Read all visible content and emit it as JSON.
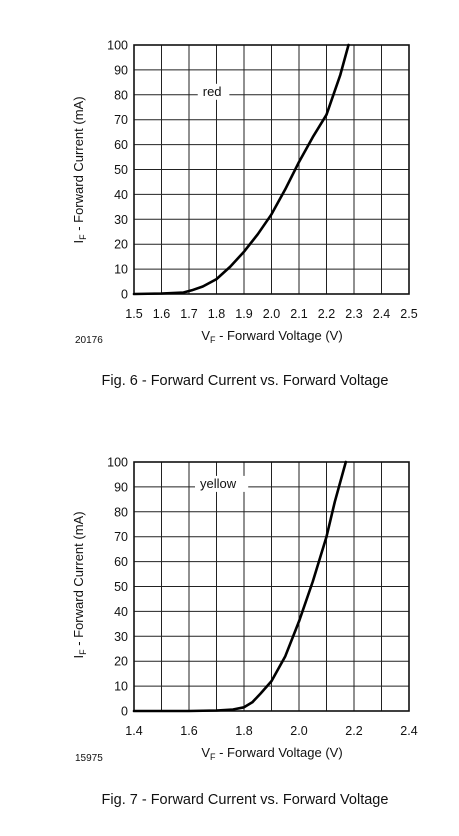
{
  "chart_data": [
    {
      "type": "line",
      "figure_id": "20176",
      "caption": "Fig. 6 - Forward Current vs. Forward Voltage",
      "xlabel_main": "V",
      "xlabel_sub": "F",
      "xlabel_rest": " - Forward Voltage (V)",
      "ylabel_main": "I",
      "ylabel_sub": "F",
      "ylabel_rest": " - Forward Current (mA)",
      "xlim": [
        1.5,
        2.5
      ],
      "ylim": [
        0,
        100
      ],
      "x_ticks": [
        1.5,
        1.6,
        1.7,
        1.8,
        1.9,
        2.0,
        2.1,
        2.2,
        2.3,
        2.4,
        2.5
      ],
      "x_tick_labels": [
        "1.5",
        "1.6",
        "1.7",
        "1.8",
        "1.9",
        "2.0",
        "2.1",
        "2.2",
        "2.3",
        "2.4",
        "2.5"
      ],
      "x_grid": [
        1.5,
        1.6,
        1.7,
        1.8,
        1.9,
        2.0,
        2.1,
        2.2,
        2.3,
        2.4,
        2.5
      ],
      "y_ticks": [
        0,
        10,
        20,
        30,
        40,
        50,
        60,
        70,
        80,
        90,
        100
      ],
      "y_tick_labels": [
        "0",
        "10",
        "20",
        "30",
        "40",
        "50",
        "60",
        "70",
        "80",
        "90",
        "100"
      ],
      "grid": true,
      "series": [
        {
          "name": "red",
          "label_at": [
            1.75,
            80
          ],
          "x": [
            1.5,
            1.6,
            1.68,
            1.71,
            1.75,
            1.8,
            1.85,
            1.9,
            1.95,
            2.0,
            2.05,
            2.1,
            2.15,
            2.2,
            2.25,
            2.28
          ],
          "y": [
            0,
            0.2,
            0.6,
            1.5,
            3,
            6,
            11,
            17,
            24,
            32,
            42,
            53,
            63,
            72,
            88,
            100
          ]
        }
      ]
    },
    {
      "type": "line",
      "figure_id": "15975",
      "caption": "Fig. 7 - Forward Current vs. Forward Voltage",
      "xlabel_main": "V",
      "xlabel_sub": "F",
      "xlabel_rest": " - Forward Voltage (V)",
      "ylabel_main": "I",
      "ylabel_sub": "F",
      "ylabel_rest": " - Forward Current (mA)",
      "xlim": [
        1.4,
        2.4
      ],
      "ylim": [
        0,
        100
      ],
      "x_ticks": [
        1.4,
        1.6,
        1.8,
        2.0,
        2.2,
        2.4
      ],
      "x_tick_labels": [
        "1.4",
        "1.6",
        "1.8",
        "2.0",
        "2.2",
        "2.4"
      ],
      "x_grid": [
        1.4,
        1.5,
        1.6,
        1.7,
        1.8,
        1.9,
        2.0,
        2.1,
        2.2,
        2.3,
        2.4
      ],
      "y_ticks": [
        0,
        10,
        20,
        30,
        40,
        50,
        60,
        70,
        80,
        90,
        100
      ],
      "y_tick_labels": [
        "0",
        "10",
        "20",
        "30",
        "40",
        "50",
        "60",
        "70",
        "80",
        "90",
        "100"
      ],
      "grid": true,
      "series": [
        {
          "name": "yellow",
          "label_at": [
            1.64,
            90
          ],
          "x": [
            1.4,
            1.6,
            1.7,
            1.76,
            1.8,
            1.83,
            1.86,
            1.9,
            1.95,
            2.0,
            2.05,
            2.1,
            2.13,
            2.17
          ],
          "y": [
            0,
            0,
            0.2,
            0.6,
            1.5,
            3.5,
            7,
            12,
            22,
            36,
            52,
            70,
            84,
            100
          ]
        }
      ]
    }
  ]
}
